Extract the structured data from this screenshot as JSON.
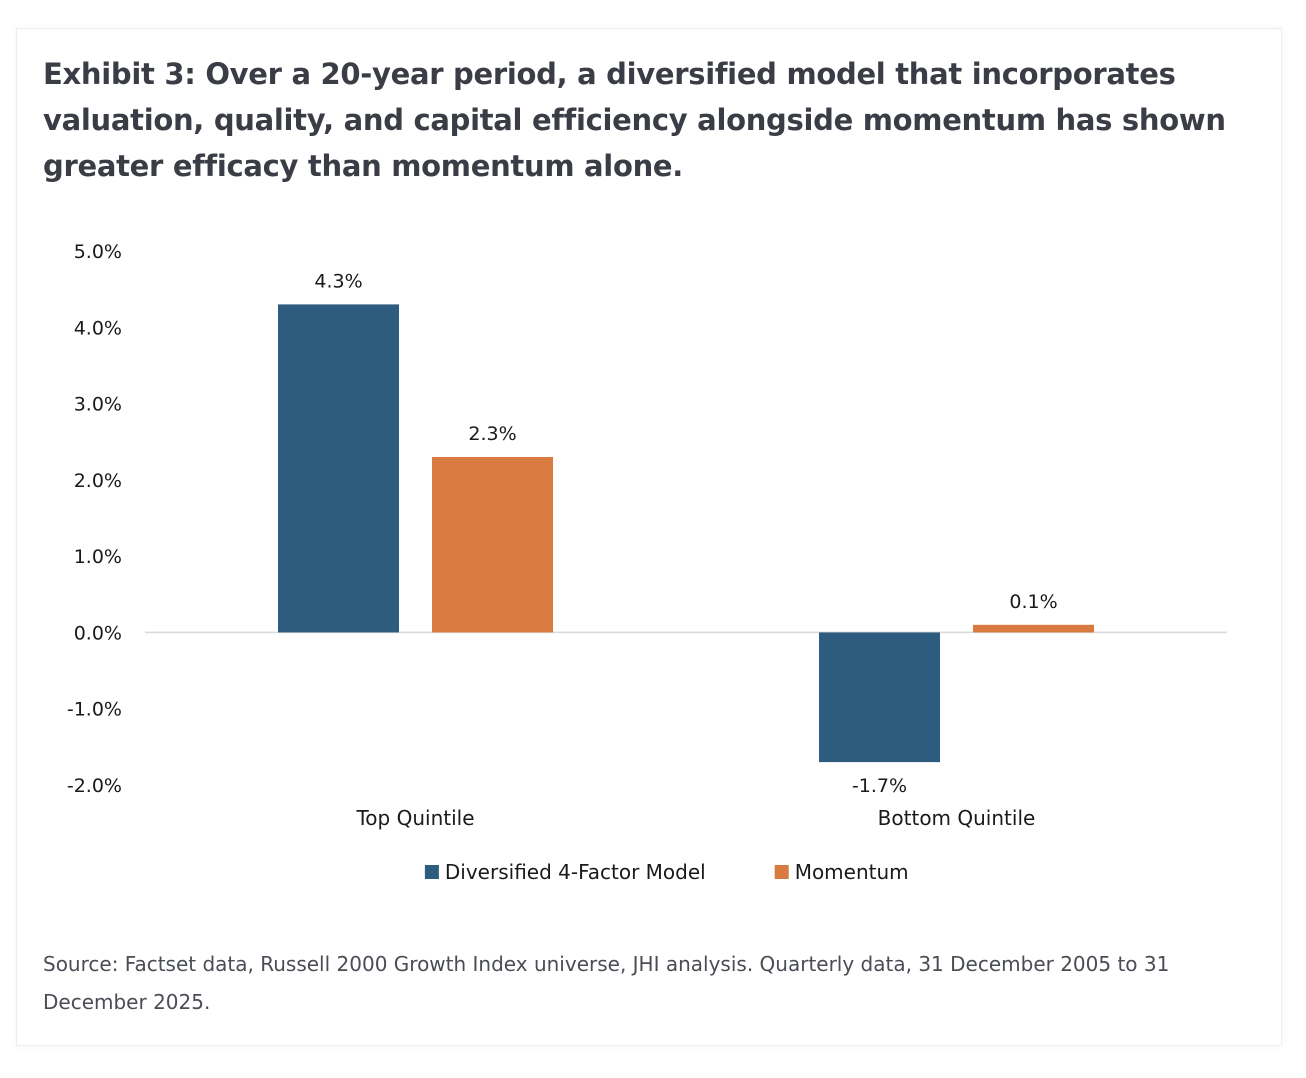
{
  "title": "Exhibit 3: Over a 20-year period, a diversified model that incorporates valuation, quality, and capital efficiency alongside momentum has shown greater efficacy than momentum alone.",
  "source": "Source: Factset data, Russell 2000 Growth Index universe, JHI analysis. Quarterly data, 31 December 2005 to 31 December 2025.",
  "chart_data": {
    "type": "bar",
    "categories": [
      "Top Quintile",
      "Bottom Quintile"
    ],
    "series": [
      {
        "name": "Diversified 4-Factor Model",
        "values": [
          4.3,
          -1.7
        ],
        "labels": [
          "4.3%",
          "-1.7%"
        ],
        "color": "#2e5c7e"
      },
      {
        "name": "Momentum",
        "values": [
          2.3,
          0.1
        ],
        "labels": [
          "2.3%",
          "0.1%"
        ],
        "color": "#d97a41"
      }
    ],
    "ylim": [
      -2.0,
      5.0
    ],
    "yticks": [
      5.0,
      4.0,
      3.0,
      2.0,
      1.0,
      0.0,
      -1.0,
      -2.0
    ],
    "ytick_labels": [
      "5.0%",
      "4.0%",
      "3.0%",
      "2.0%",
      "1.0%",
      "0.0%",
      "-1.0%",
      "-2.0%"
    ],
    "xlabel": "",
    "ylabel": "",
    "grid": false,
    "legend": "bottom-center"
  }
}
